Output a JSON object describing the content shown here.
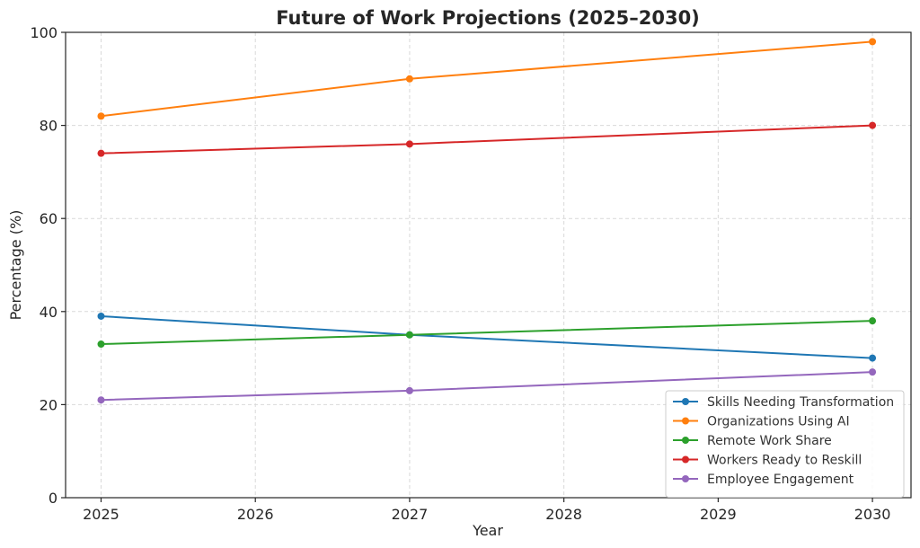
{
  "chart_data": {
    "type": "line",
    "title": "Future of Work Projections (2025–2030)",
    "xlabel": "Year",
    "ylabel": "Percentage (%)",
    "xlim": [
      2024.77,
      2030.25
    ],
    "ylim": [
      0,
      100
    ],
    "x_ticks": [
      "2025",
      "2026",
      "2027",
      "2028",
      "2029",
      "2030"
    ],
    "y_ticks": [
      "0",
      "20",
      "40",
      "60",
      "80",
      "100"
    ],
    "grid": true,
    "legend_position": "lower-right",
    "x": [
      2025,
      2027,
      2030
    ],
    "series": [
      {
        "name": "Skills Needing Transformation",
        "color": "#1f77b4",
        "values": [
          39,
          35,
          30
        ]
      },
      {
        "name": "Organizations Using AI",
        "color": "#ff7f0e",
        "values": [
          82,
          90,
          98
        ]
      },
      {
        "name": "Remote Work Share",
        "color": "#2ca02c",
        "values": [
          33,
          35,
          38
        ]
      },
      {
        "name": "Workers Ready to Reskill",
        "color": "#d62728",
        "values": [
          74,
          76,
          80
        ]
      },
      {
        "name": "Employee Engagement",
        "color": "#9467bd",
        "values": [
          21,
          23,
          27
        ]
      }
    ]
  }
}
